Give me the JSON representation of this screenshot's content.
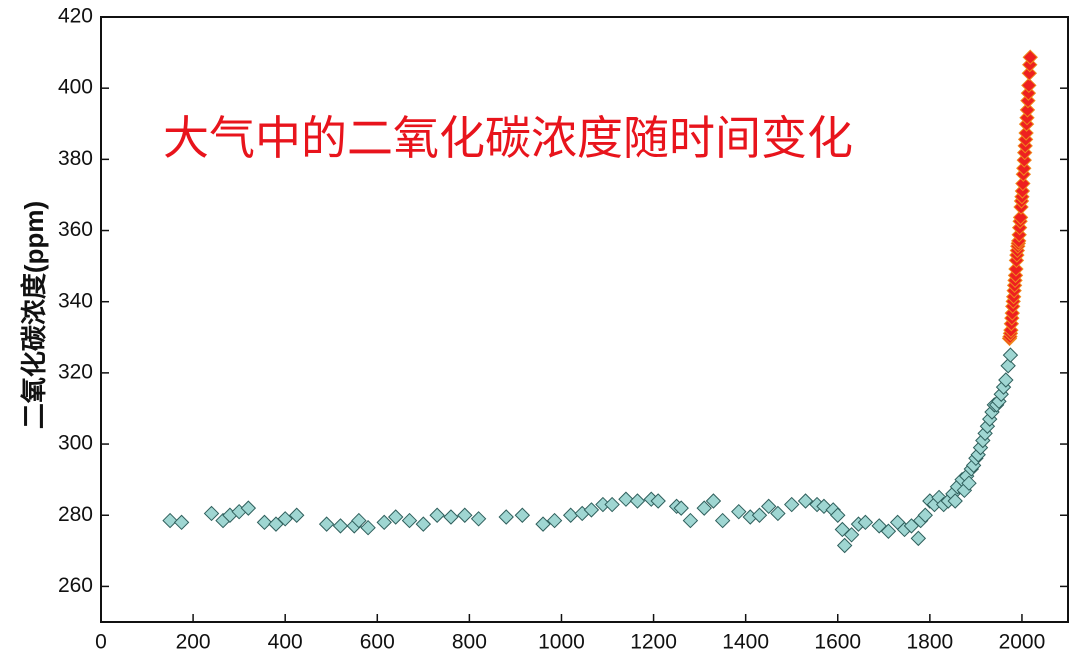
{
  "chart_data": {
    "type": "scatter",
    "title": "大气中的二氧化碳浓度随时间变化",
    "y_label": "二氧化碳浓度(ppm)",
    "xlim": [
      0,
      2100
    ],
    "ylim": [
      250,
      420
    ],
    "xticks": [
      0,
      200,
      400,
      600,
      800,
      1000,
      1200,
      1400,
      1600,
      1800,
      2000
    ],
    "yticks": [
      260,
      280,
      300,
      320,
      340,
      360,
      380,
      400,
      420
    ],
    "series": [
      {
        "color": "#9fd6d2",
        "edge": "#2f5f5c",
        "x": [
          150,
          175,
          240,
          265,
          280,
          300,
          320,
          355,
          380,
          400,
          425,
          490,
          520,
          550,
          560,
          580,
          615,
          640,
          670,
          700,
          730,
          760,
          790,
          820,
          880,
          915,
          960,
          985,
          1020,
          1045,
          1065,
          1090,
          1110,
          1140,
          1165,
          1195,
          1210,
          1250,
          1260,
          1280,
          1310,
          1330,
          1350,
          1385,
          1410,
          1430,
          1450,
          1470,
          1500,
          1530,
          1555,
          1570,
          1590,
          1600,
          1610,
          1615,
          1630,
          1645,
          1660,
          1690,
          1710,
          1730,
          1745,
          1760,
          1775,
          1780,
          1790,
          1800,
          1810,
          1820,
          1830,
          1840,
          1850,
          1855,
          1860,
          1870,
          1875,
          1880,
          1885,
          1890,
          1895,
          1900,
          1905,
          1910,
          1915,
          1920,
          1925,
          1930,
          1935,
          1940,
          1945,
          1950,
          1955,
          1960,
          1965,
          1970,
          1975
        ],
        "values": [
          278.5,
          278,
          280.5,
          278.5,
          280,
          281,
          282,
          278,
          277.5,
          279,
          280,
          277.5,
          277,
          277,
          278.5,
          276.5,
          278,
          279.5,
          278.5,
          277.5,
          280,
          279.5,
          280,
          279,
          279.5,
          280,
          277.5,
          278.5,
          280,
          280.5,
          281.5,
          283,
          283,
          284.5,
          284,
          284.5,
          284,
          282.5,
          282,
          278.5,
          282,
          284,
          278.5,
          281,
          279.5,
          280,
          282.5,
          280.5,
          283,
          284,
          283,
          282.5,
          281.5,
          280,
          276,
          271.5,
          274.5,
          277.5,
          278,
          277,
          275.5,
          278,
          276,
          277,
          273.5,
          278.5,
          280,
          284,
          283,
          285,
          283,
          284,
          286,
          284,
          288,
          290,
          287,
          291,
          289,
          293,
          294,
          296,
          297,
          299,
          301,
          303,
          305,
          307,
          309,
          311,
          311,
          312,
          314,
          316,
          318,
          322,
          325
        ]
      },
      {
        "color": "#ee2020",
        "edge": "#f08a1c",
        "x": [
          1973,
          1974,
          1975,
          1976,
          1977,
          1978,
          1979,
          1980,
          1981,
          1982,
          1983,
          1984,
          1985,
          1986,
          1987,
          1988,
          1989,
          1990,
          1991,
          1992,
          1993,
          1994,
          1995,
          1996,
          1997,
          1998,
          1999,
          2000,
          2001,
          2002,
          2003,
          2004,
          2005,
          2006,
          2007,
          2008,
          2009,
          2010,
          2011,
          2012,
          2013,
          2014,
          2015,
          2016,
          2017,
          2018
        ],
        "values": [
          329.7,
          330.2,
          331.1,
          332.0,
          333.8,
          335.4,
          336.8,
          338.7,
          340.1,
          341.4,
          343.1,
          344.6,
          346.0,
          347.4,
          349.2,
          351.6,
          353.1,
          354.4,
          355.6,
          356.4,
          357.1,
          358.8,
          360.8,
          362.6,
          363.7,
          366.6,
          368.3,
          369.5,
          371.1,
          373.2,
          375.8,
          377.5,
          379.8,
          381.9,
          383.8,
          385.6,
          387.4,
          389.9,
          391.7,
          393.9,
          396.5,
          398.6,
          400.8,
          404.2,
          406.6,
          408.7
        ]
      }
    ]
  }
}
